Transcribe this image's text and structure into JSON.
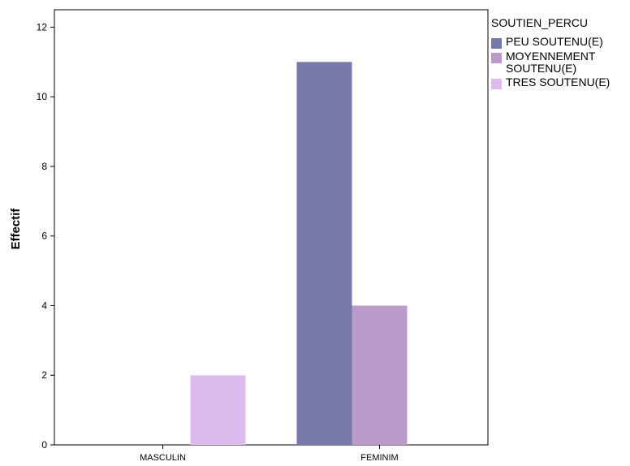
{
  "chart_data": {
    "type": "bar",
    "ylabel": "Effectif",
    "xlabel": "",
    "ylim": [
      0,
      12.5
    ],
    "yticks": [
      0,
      2,
      4,
      6,
      8,
      10,
      12
    ],
    "categories": [
      "MASCULIN",
      "FEMINIM"
    ],
    "legend": {
      "title": "SOUTIEN_PERCU",
      "placement": "right"
    },
    "series": [
      {
        "name": "PEU SOUTENU(E)",
        "label": "PEU SOUTENU(E)",
        "color": "#7779a8",
        "values": [
          0,
          11
        ]
      },
      {
        "name": "MOYENNEMENT SOUTENU(E)",
        "label": "MOYENNEMENT\nSOUTENU(E)",
        "color": "#b99ac8",
        "values": [
          0,
          4
        ]
      },
      {
        "name": "TRES SOUTENU(E)",
        "label": "TRES SOUTENU(E)",
        "color": "#dcbcef",
        "values": [
          2,
          0
        ]
      }
    ]
  }
}
